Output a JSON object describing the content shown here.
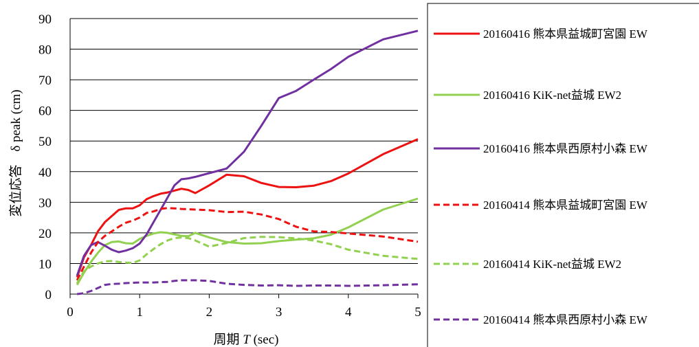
{
  "chart_data": {
    "type": "line",
    "title": "",
    "xlabel_prefix": "周期 ",
    "xlabel_var": "T",
    "xlabel_suffix": " (sec)",
    "ylabel_prefix": "変位応答　δ",
    "ylabel_suffix": " peak (cm)",
    "xlim": [
      0,
      5
    ],
    "ylim": [
      0,
      90
    ],
    "xticks": [
      "0",
      "1",
      "2",
      "3",
      "4",
      "5"
    ],
    "yticks": [
      "0",
      "10",
      "20",
      "30",
      "40",
      "50",
      "60",
      "70",
      "80",
      "90"
    ],
    "grid": "horizontal",
    "legend_position": "right",
    "series": [
      {
        "name": "20160416 熊本県益城町宮園 EW",
        "color": "#ee1111",
        "dash": "solid",
        "x": [
          0.1,
          0.2,
          0.3,
          0.4,
          0.5,
          0.6,
          0.7,
          0.8,
          0.9,
          1.0,
          1.1,
          1.2,
          1.3,
          1.4,
          1.5,
          1.6,
          1.7,
          1.8,
          2.0,
          2.25,
          2.5,
          2.75,
          3.0,
          3.25,
          3.5,
          3.75,
          4.0,
          4.5,
          5.0
        ],
        "y": [
          5.5,
          12,
          16,
          20.5,
          23.5,
          25.5,
          27.5,
          28,
          28,
          29,
          31,
          32,
          32.8,
          33.2,
          33.8,
          34.4,
          34,
          33,
          35.5,
          39,
          38.5,
          36.3,
          35,
          34.9,
          35.4,
          36.9,
          39.4,
          45.7,
          50.6
        ]
      },
      {
        "name": "20160416 KiK-net益城 EW2",
        "color": "#92d050",
        "dash": "solid",
        "x": [
          0.1,
          0.2,
          0.3,
          0.4,
          0.5,
          0.6,
          0.7,
          0.8,
          0.9,
          1.0,
          1.1,
          1.2,
          1.3,
          1.4,
          1.5,
          1.6,
          1.7,
          1.8,
          2.0,
          2.25,
          2.5,
          2.75,
          3.0,
          3.25,
          3.5,
          3.75,
          4.0,
          4.5,
          5.0
        ],
        "y": [
          3,
          7,
          10.5,
          13.5,
          16,
          17,
          17.2,
          16.6,
          16.5,
          18,
          19,
          19.8,
          20.2,
          20,
          19.5,
          19,
          18.9,
          20,
          18.5,
          17,
          16.5,
          16.6,
          17.3,
          17.8,
          18.2,
          19.4,
          21.8,
          27.6,
          31.2
        ]
      },
      {
        "name": "20160416 熊本県西原村小森 EW",
        "color": "#7030a0",
        "dash": "solid",
        "x": [
          0.1,
          0.2,
          0.3,
          0.4,
          0.5,
          0.6,
          0.7,
          0.8,
          0.9,
          1.0,
          1.1,
          1.2,
          1.3,
          1.4,
          1.5,
          1.6,
          1.7,
          1.8,
          2.0,
          2.25,
          2.5,
          2.75,
          3.0,
          3.25,
          3.5,
          3.75,
          4.0,
          4.5,
          5.0
        ],
        "y": [
          6,
          12.5,
          16,
          17,
          15.8,
          14.5,
          13.7,
          14.2,
          15,
          16.5,
          19.5,
          23.5,
          27.5,
          31.5,
          35.5,
          37.5,
          37.8,
          38.3,
          39.5,
          41,
          46.5,
          55,
          64,
          66.4,
          70,
          73.5,
          77.5,
          83.2,
          86
        ]
      },
      {
        "name": "20160414 熊本県益城町宮園 EW",
        "color": "#ee1111",
        "dash": "dashed",
        "x": [
          0.1,
          0.2,
          0.3,
          0.4,
          0.5,
          0.6,
          0.7,
          0.8,
          0.9,
          1.0,
          1.1,
          1.2,
          1.3,
          1.4,
          1.5,
          1.6,
          1.7,
          1.8,
          2.0,
          2.25,
          2.5,
          2.75,
          3.0,
          3.25,
          3.5,
          3.75,
          4.0,
          4.5,
          5.0
        ],
        "y": [
          4.5,
          9,
          13.5,
          17,
          19,
          20.5,
          22,
          23.3,
          24,
          25,
          26.5,
          27,
          27.8,
          28.1,
          28,
          27.8,
          27.7,
          27.6,
          27.4,
          26.8,
          26.9,
          26,
          24.5,
          22,
          20.5,
          20.3,
          19.8,
          18.8,
          17.1
        ]
      },
      {
        "name": "20160414 KiK-net益城 EW2",
        "color": "#92d050",
        "dash": "dashed",
        "x": [
          0.1,
          0.2,
          0.3,
          0.4,
          0.5,
          0.6,
          0.7,
          0.8,
          0.9,
          1.0,
          1.1,
          1.2,
          1.3,
          1.4,
          1.5,
          1.6,
          1.7,
          1.8,
          2.0,
          2.25,
          2.5,
          2.75,
          3.0,
          3.25,
          3.5,
          3.75,
          4.0,
          4.5,
          5.0
        ],
        "y": [
          3.5,
          7.5,
          9,
          10,
          10.7,
          10.8,
          10.5,
          10.3,
          10.2,
          11,
          13,
          14.7,
          16.3,
          17.5,
          18.3,
          18.5,
          18.3,
          17.5,
          15.5,
          16.7,
          18.3,
          18.7,
          18.6,
          18.2,
          17.5,
          16.3,
          14.5,
          12.5,
          11.5
        ]
      },
      {
        "name": "20160414 熊本県西原村小森 EW",
        "color": "#7030a0",
        "dash": "dashed",
        "x": [
          0.1,
          0.2,
          0.3,
          0.4,
          0.5,
          0.6,
          0.7,
          0.8,
          0.9,
          1.0,
          1.1,
          1.2,
          1.3,
          1.4,
          1.5,
          1.6,
          1.7,
          1.8,
          2.0,
          2.25,
          2.5,
          2.75,
          3.0,
          3.25,
          3.5,
          3.75,
          4.0,
          4.5,
          5.0
        ],
        "y": [
          0,
          0.3,
          1,
          2,
          3,
          3.3,
          3.4,
          3.6,
          3.7,
          3.8,
          3.8,
          3.8,
          3.9,
          4,
          4.3,
          4.5,
          4.5,
          4.5,
          4.3,
          3.4,
          3,
          2.8,
          2.9,
          2.7,
          2.8,
          2.8,
          2.7,
          2.9,
          3.2
        ]
      }
    ]
  }
}
